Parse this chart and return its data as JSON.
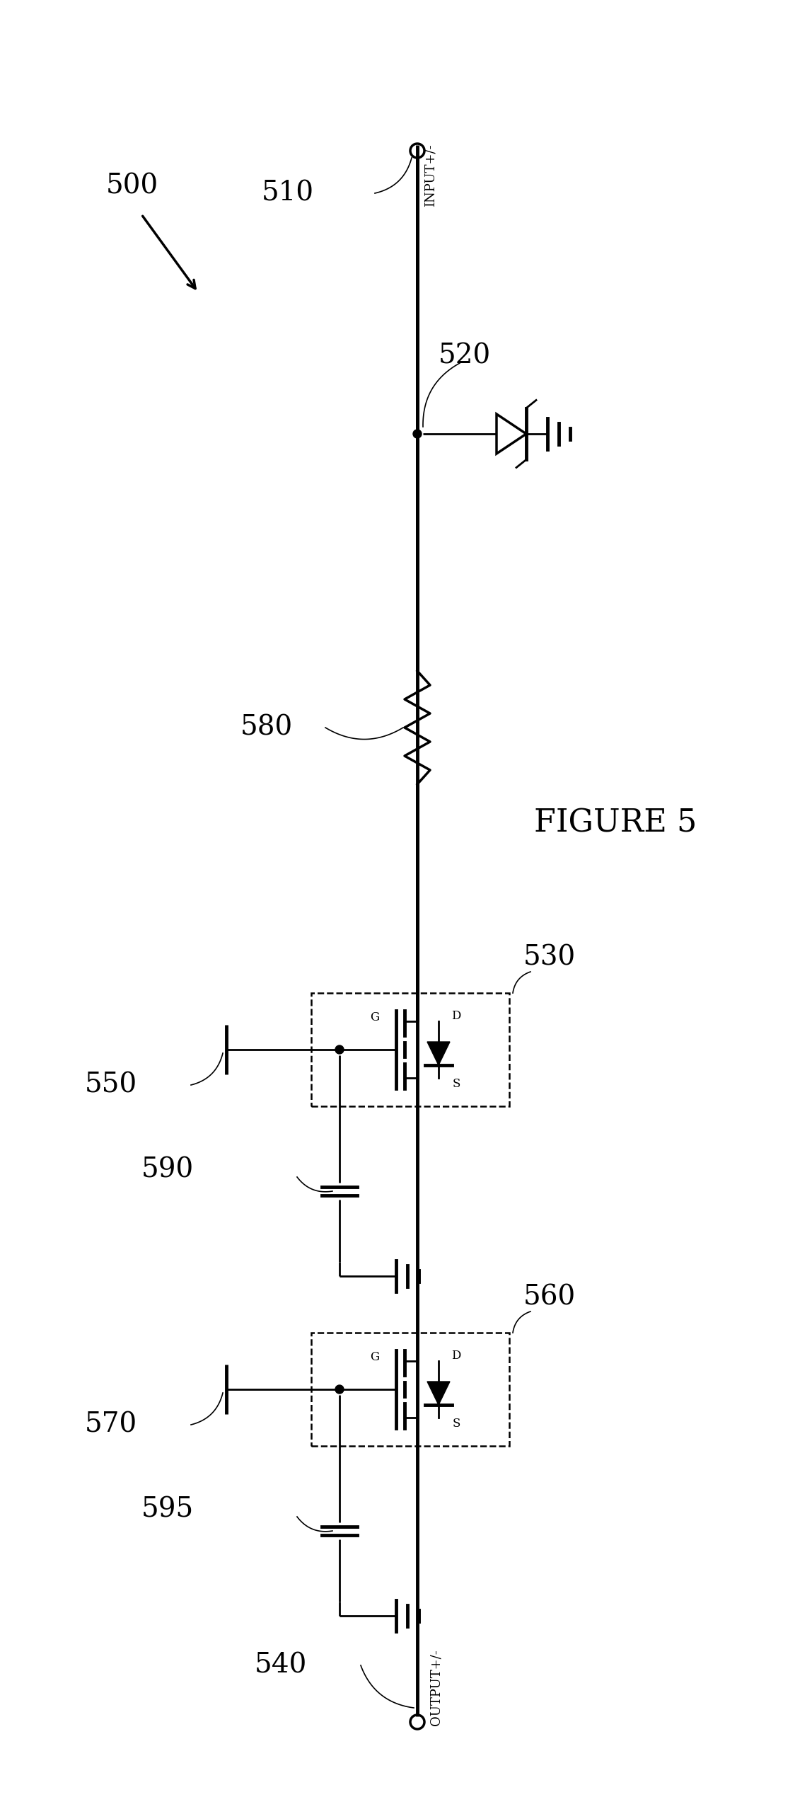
{
  "title": "FIGURE 5",
  "background_color": "#ffffff",
  "line_color": "#000000",
  "labels": {
    "input": "INPUT+/-",
    "output": "OUTPUT+/-",
    "n500": "500",
    "n510": "510",
    "n520": "520",
    "n530": "530",
    "n540": "540",
    "n550": "550",
    "n560": "560",
    "n570": "570",
    "n580": "580",
    "n590": "590",
    "n595": "595"
  },
  "figsize": [
    11.48,
    25.63
  ],
  "dpi": 100
}
